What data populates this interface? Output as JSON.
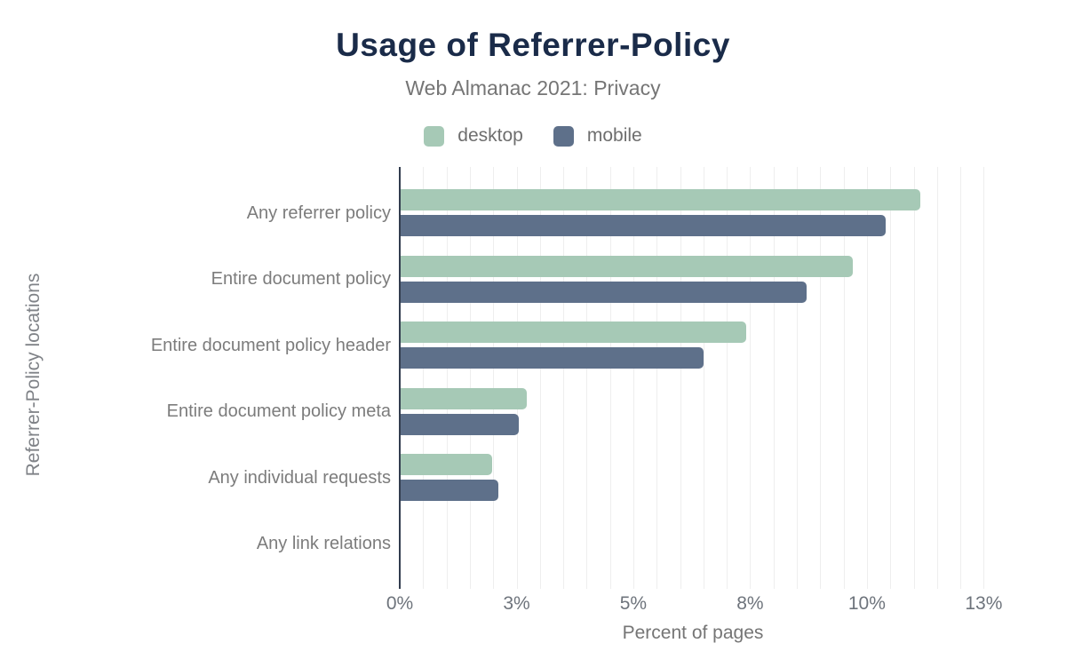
{
  "header": {
    "title": "Usage of Referrer-Policy",
    "subtitle": "Web Almanac 2021: Privacy"
  },
  "chart_data": {
    "type": "bar",
    "orientation": "horizontal",
    "title": "Usage of Referrer-Policy",
    "subtitle": "Web Almanac 2021: Privacy",
    "categories": [
      "Any referrer policy",
      "Entire document policy",
      "Entire document policy header",
      "Entire document policy meta",
      "Any individual requests",
      "Any link relations"
    ],
    "series": [
      {
        "name": "desktop",
        "color": "#a6c9b6",
        "values": [
          11.12,
          9.68,
          7.4,
          2.69,
          1.95,
          0
        ]
      },
      {
        "name": "mobile",
        "color": "#5e708a",
        "values": [
          10.38,
          8.68,
          6.48,
          2.52,
          2.1,
          0
        ]
      }
    ],
    "xlabel": "Percent of pages",
    "ylabel": "Referrer-Policy locations",
    "x_ticks": [
      {
        "value": 0,
        "label": "0%"
      },
      {
        "value": 2.5,
        "label": "3%"
      },
      {
        "value": 5,
        "label": "5%"
      },
      {
        "value": 7.5,
        "label": "8%"
      },
      {
        "value": 10,
        "label": "10%"
      },
      {
        "value": 12.5,
        "label": "13%"
      }
    ],
    "xlim": [
      0,
      12.55
    ],
    "minor_grid_step": 0.5,
    "grid": true,
    "legend_position": "top"
  },
  "colors": {
    "title": "#1a2b49",
    "secondary_text": "#757575",
    "tick_text": "#6e747c",
    "axis_line": "#323c4e",
    "gridline": "#eeeeee",
    "background": "#ffffff",
    "desktop": "#a6c9b6",
    "mobile": "#5e708a"
  }
}
